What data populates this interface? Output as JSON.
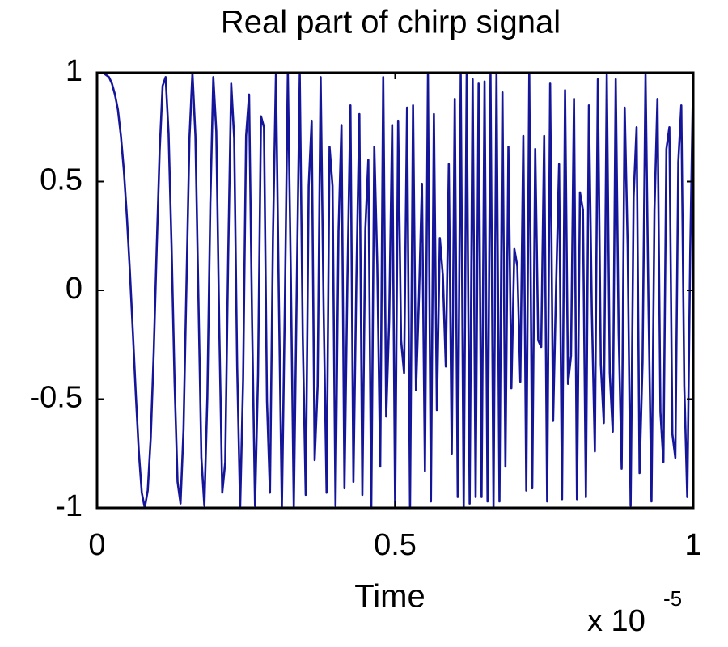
{
  "chart_data": {
    "type": "line",
    "title": "Real part of chirp signal",
    "xlabel": "Time",
    "x_multiplier": "x 10",
    "x_multiplier_exponent": "-5",
    "color": "#15159a",
    "xlim": [
      0,
      1
    ],
    "ylim": [
      -1,
      1
    ],
    "xticks": [
      0,
      0.5,
      1
    ],
    "yticks": [
      -1,
      -0.5,
      0,
      0.5,
      1
    ],
    "grid": false,
    "x": [
      0,
      0.005,
      0.01,
      0.015,
      0.02,
      0.025,
      0.03,
      0.035,
      0.04,
      0.045,
      0.05,
      0.055,
      0.06,
      0.065,
      0.07,
      0.075,
      0.08,
      0.085,
      0.09,
      0.095,
      0.1,
      0.105,
      0.11,
      0.115,
      0.12,
      0.125,
      0.13,
      0.135,
      0.14,
      0.145,
      0.15,
      0.155,
      0.16,
      0.165,
      0.17,
      0.175,
      0.18,
      0.185,
      0.19,
      0.195,
      0.2,
      0.205,
      0.21,
      0.215,
      0.22,
      0.225,
      0.23,
      0.235,
      0.24,
      0.245,
      0.25,
      0.255,
      0.26,
      0.265,
      0.27,
      0.275,
      0.28,
      0.285,
      0.29,
      0.295,
      0.3,
      0.305,
      0.31,
      0.315,
      0.32,
      0.325,
      0.33,
      0.335,
      0.34,
      0.345,
      0.35,
      0.355,
      0.36,
      0.365,
      0.37,
      0.375,
      0.38,
      0.385,
      0.39,
      0.395,
      0.4,
      0.405,
      0.41,
      0.415,
      0.42,
      0.425,
      0.43,
      0.435,
      0.44,
      0.445,
      0.45,
      0.455,
      0.46,
      0.465,
      0.47,
      0.475,
      0.48,
      0.485,
      0.49,
      0.495,
      0.5,
      0.505,
      0.51,
      0.515,
      0.52,
      0.525,
      0.53,
      0.535,
      0.54,
      0.545,
      0.55,
      0.555,
      0.56,
      0.565,
      0.57,
      0.575,
      0.58,
      0.585,
      0.59,
      0.595,
      0.6,
      0.605,
      0.61,
      0.615,
      0.62,
      0.625,
      0.63,
      0.635,
      0.64,
      0.645,
      0.65,
      0.655,
      0.66,
      0.665,
      0.67,
      0.675,
      0.68,
      0.685,
      0.69,
      0.695,
      0.7,
      0.705,
      0.71,
      0.715,
      0.72,
      0.725,
      0.73,
      0.735,
      0.74,
      0.745,
      0.75,
      0.755,
      0.76,
      0.765,
      0.77,
      0.775,
      0.78,
      0.785,
      0.79,
      0.795,
      0.8,
      0.805,
      0.81,
      0.815,
      0.82,
      0.825,
      0.83,
      0.835,
      0.84,
      0.845,
      0.85,
      0.855,
      0.86,
      0.865,
      0.87,
      0.875,
      0.88,
      0.885,
      0.89,
      0.895,
      0.9,
      0.905,
      0.91,
      0.915,
      0.92,
      0.925,
      0.93,
      0.935,
      0.94,
      0.945,
      0.95,
      0.955,
      0.96,
      0.965,
      0.97,
      0.975,
      0.98,
      0.985,
      0.99,
      0.995,
      1
    ],
    "values": [
      1,
      1,
      1,
      0.99,
      0.98,
      0.95,
      0.9,
      0.83,
      0.71,
      0.55,
      0.34,
      0.09,
      -0.19,
      -0.48,
      -0.74,
      -0.93,
      -1,
      -0.92,
      -0.68,
      -0.29,
      0.19,
      0.64,
      0.94,
      0.98,
      0.72,
      0.2,
      -0.42,
      -0.88,
      -0.98,
      -0.64,
      0.03,
      0.7,
      1,
      0.71,
      -0.03,
      -0.77,
      -0.99,
      -0.49,
      0.4,
      0.98,
      0.73,
      -0.17,
      -0.93,
      -0.79,
      0.16,
      0.95,
      0.7,
      -0.35,
      -1,
      -0.41,
      0.71,
      0.9,
      -0.14,
      -0.99,
      -0.39,
      0.8,
      0.75,
      -0.51,
      -0.93,
      0.24,
      0.99,
      -0.04,
      -1,
      -0.07,
      1,
      0.07,
      -1,
      0.02,
      0.99,
      -0.21,
      -0.94,
      0.48,
      0.78,
      -0.78,
      -0.44,
      0.98,
      -0.08,
      -0.93,
      0.66,
      0.48,
      -0.99,
      0.27,
      0.76,
      -0.91,
      0.06,
      0.85,
      -0.88,
      0.06,
      0.81,
      -0.94,
      0.28,
      0.6,
      -1,
      0.66,
      0.12,
      -0.81,
      0.98,
      -0.58,
      -0.14,
      0.76,
      -1,
      0.78,
      -0.23,
      -0.38,
      0.84,
      -1,
      0.85,
      -0.46,
      -0.03,
      0.49,
      -0.83,
      0.99,
      -0.97,
      0.81,
      -0.55,
      0.24,
      0.07,
      -0.35,
      0.58,
      -0.75,
      0.88,
      -0.95,
      0.99,
      -1,
      0.99,
      -0.98,
      0.97,
      -0.95,
      0.95,
      -0.95,
      0.96,
      -0.97,
      0.99,
      -1,
      1,
      -0.97,
      0.91,
      -0.81,
      0.66,
      -0.45,
      0.19,
      0.11,
      -0.42,
      0.71,
      -0.92,
      1,
      -0.91,
      0.65,
      -0.23,
      -0.26,
      0.71,
      -0.97,
      0.95,
      -0.6,
      0.02,
      0.58,
      -0.96,
      0.92,
      -0.43,
      -0.3,
      0.88,
      -0.96,
      0.45,
      0.37,
      -0.95,
      0.85,
      -0.1,
      -0.74,
      0.97,
      -0.34,
      -0.61,
      0.99,
      -0.38,
      -0.65,
      0.97,
      -0.2,
      -0.82,
      0.84,
      0.21,
      -0.99,
      0.43,
      0.75,
      -0.84,
      -0.33,
      0.99,
      -0.07,
      -0.97,
      0.37,
      0.88,
      -0.56,
      -0.79,
      0.65,
      0.75,
      -0.66,
      -0.77,
      0.59,
      0.85,
      -0.44,
      -0.95,
      0.18,
      1
    ]
  }
}
